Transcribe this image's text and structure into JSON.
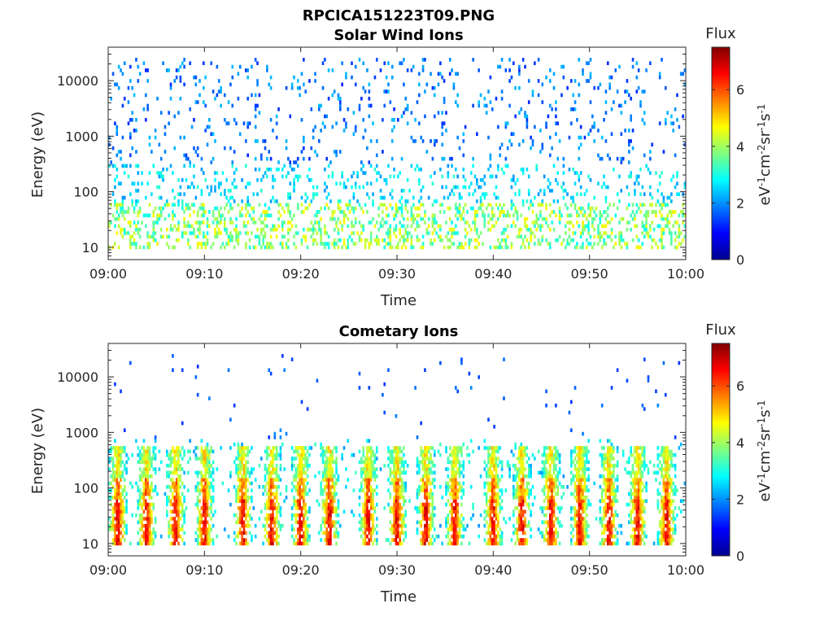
{
  "figure": {
    "filename": "RPCICA151223T09.PNG"
  },
  "chart_data": [
    {
      "type": "heatmap",
      "title": "Solar Wind Ions",
      "xlabel": "Time",
      "ylabel": "Energy (eV)",
      "x_ticks": [
        "09:00",
        "09:10",
        "09:20",
        "09:30",
        "09:40",
        "09:50",
        "10:00"
      ],
      "y_ticks": [
        "10",
        "100",
        "1000",
        "10000"
      ],
      "y_tick_values": [
        10,
        100,
        1000,
        10000
      ],
      "xlim": [
        "09:00",
        "10:00"
      ],
      "ylim": [
        6,
        40000
      ],
      "y_scale": "log",
      "colorbar": {
        "label": "Flux",
        "units": "eV-1cm-2sr-1s-1",
        "ticks": [
          "0",
          "2",
          "4",
          "6"
        ],
        "tick_values": [
          0,
          2,
          4,
          6
        ],
        "range": [
          0,
          7.5
        ],
        "colormap": "jet"
      },
      "pattern": {
        "peak_flux": 4.8,
        "cometary_bursts_minutes": [],
        "scattered_high_energy": true
      }
    },
    {
      "type": "heatmap",
      "title": "Cometary Ions",
      "xlabel": "Time",
      "ylabel": "Energy (eV)",
      "x_ticks": [
        "09:00",
        "09:10",
        "09:20",
        "09:30",
        "09:40",
        "09:50",
        "10:00"
      ],
      "y_ticks": [
        "10",
        "100",
        "1000",
        "10000"
      ],
      "y_tick_values": [
        10,
        100,
        1000,
        10000
      ],
      "xlim": [
        "09:00",
        "10:00"
      ],
      "ylim": [
        6,
        40000
      ],
      "y_scale": "log",
      "colorbar": {
        "label": "Flux",
        "units": "eV-1cm-2sr-1s-1",
        "ticks": [
          "0",
          "2",
          "4",
          "6"
        ],
        "tick_values": [
          0,
          2,
          4,
          6
        ],
        "range": [
          0,
          7.5
        ],
        "colormap": "jet"
      },
      "pattern": {
        "peak_flux": 6.9,
        "burst_times": [
          "09:01",
          "09:04",
          "09:07",
          "09:10",
          "09:14",
          "09:17",
          "09:20",
          "09:23",
          "09:27",
          "09:30",
          "09:33",
          "09:36",
          "09:40",
          "09:43",
          "09:46",
          "09:49",
          "09:52",
          "09:55",
          "09:58"
        ],
        "burst_energy_range_eV": [
          15,
          500
        ]
      }
    }
  ]
}
